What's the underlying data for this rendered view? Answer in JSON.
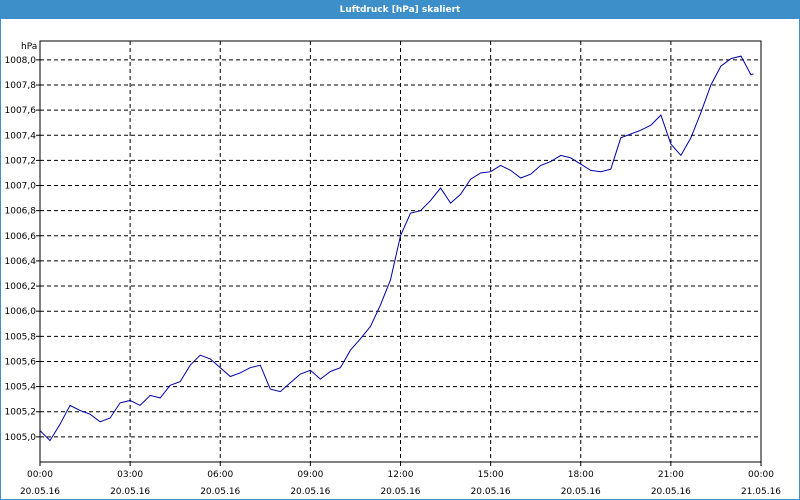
{
  "window": {
    "title": "Luftdruck [hPa] skaliert"
  },
  "colors": {
    "titlebar": "#3c8fc8",
    "line": "#0000aa",
    "grid": "#000000"
  },
  "chart_data": {
    "type": "line",
    "title": "Luftdruck [hPa] skaliert",
    "ylabel": "hPa",
    "xlabel": "",
    "ylim": [
      1004.8,
      1008.15
    ],
    "xlim": [
      "20.05.16 00:00",
      "21.05.16 00:00"
    ],
    "grid": true,
    "y_ticks": [
      "1005,0",
      "1005,2",
      "1005,4",
      "1005,6",
      "1005,8",
      "1006,0",
      "1006,2",
      "1006,4",
      "1006,6",
      "1006,8",
      "1007,0",
      "1007,2",
      "1007,4",
      "1007,6",
      "1007,8",
      "1008,0"
    ],
    "x_ticks": [
      {
        "time": "00:00",
        "date": "20.05.16"
      },
      {
        "time": "03:00",
        "date": "20.05.16"
      },
      {
        "time": "06:00",
        "date": "20.05.16"
      },
      {
        "time": "09:00",
        "date": "20.05.16"
      },
      {
        "time": "12:00",
        "date": "20.05.16"
      },
      {
        "time": "15:00",
        "date": "20.05.16"
      },
      {
        "time": "18:00",
        "date": "20.05.16"
      },
      {
        "time": "21:00",
        "date": "20.05.16"
      },
      {
        "time": "00:00",
        "date": "21.05.16"
      }
    ],
    "series": [
      {
        "x": [
          "00:00",
          "00:20",
          "00:40",
          "01:00",
          "01:20",
          "01:40",
          "02:00",
          "02:20",
          "02:40",
          "03:00",
          "03:20",
          "03:40",
          "04:00",
          "04:20",
          "04:40",
          "05:00",
          "05:20",
          "05:40",
          "06:00",
          "06:20",
          "06:40",
          "07:00",
          "07:20",
          "07:40",
          "08:00",
          "08:20",
          "08:40",
          "09:00",
          "09:20",
          "09:40",
          "10:00",
          "10:20",
          "10:40",
          "11:00",
          "11:20",
          "11:40",
          "12:00",
          "12:20",
          "12:40",
          "13:00",
          "13:20",
          "13:40",
          "14:00",
          "14:20",
          "14:40",
          "15:00",
          "15:20",
          "15:40",
          "16:00",
          "16:20",
          "16:40",
          "17:00",
          "17:20",
          "17:40",
          "18:00",
          "18:20",
          "18:40",
          "19:00",
          "19:20",
          "19:40",
          "20:00",
          "20:20",
          "20:40",
          "21:00",
          "21:20",
          "21:40",
          "22:00",
          "22:20",
          "22:40",
          "23:00",
          "23:20",
          "23:40",
          "00:00"
        ],
        "values": [
          1005.05,
          1004.97,
          1005.1,
          1005.25,
          1005.21,
          1005.18,
          1005.12,
          1005.15,
          1005.27,
          1005.29,
          1005.25,
          1005.33,
          1005.31,
          1005.41,
          1005.44,
          1005.57,
          1005.65,
          1005.62,
          1005.55,
          1005.48,
          1005.51,
          1005.55,
          1005.57,
          1005.38,
          1005.36,
          1005.43,
          1005.5,
          1005.53,
          1005.46,
          1005.52,
          1005.55,
          1005.69,
          1005.78,
          1005.88,
          1006.05,
          1006.25,
          1006.6,
          1006.78,
          1006.8,
          1006.88,
          1006.98,
          1006.86,
          1006.93,
          1007.05,
          1007.1,
          1007.11,
          1007.16,
          1007.12,
          1007.06,
          1007.09,
          1007.16,
          1007.19,
          1007.24,
          1007.22,
          1007.17,
          1007.12,
          1007.11,
          1007.13,
          1007.38,
          1007.41,
          1007.44,
          1007.48,
          1007.56,
          1007.33,
          1007.24,
          1007.38,
          1007.58,
          1007.8,
          1007.95,
          1008.01,
          1008.03,
          1007.88,
          1007.89
        ]
      }
    ]
  }
}
